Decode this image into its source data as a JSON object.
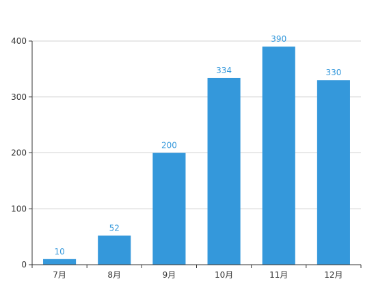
{
  "chart_data": {
    "type": "bar",
    "categories": [
      "7月",
      "8月",
      "9月",
      "10月",
      "11月",
      "12月"
    ],
    "values": [
      10,
      52,
      200,
      334,
      390,
      330
    ],
    "title": "",
    "xlabel": "",
    "ylabel": "",
    "ylim": [
      0,
      400
    ],
    "yticks": [
      0,
      100,
      200,
      300,
      400
    ],
    "grid": true,
    "data_labels": true,
    "colors": {
      "bar": "#3498db",
      "label": "#3498db",
      "grid": "#d0d0d0",
      "axis": "#333333",
      "tick_text": "#333333"
    }
  }
}
